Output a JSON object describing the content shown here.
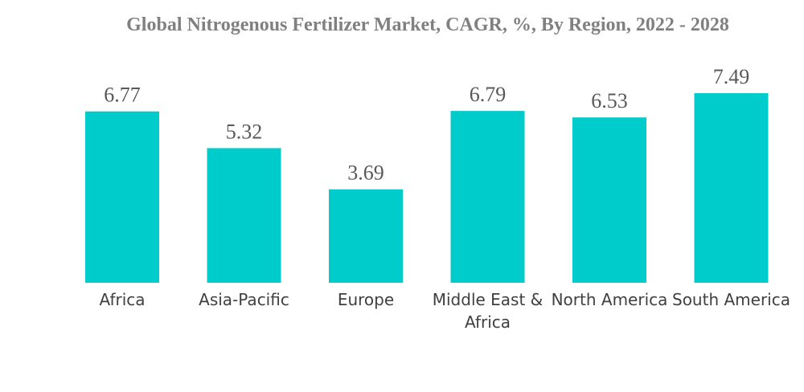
{
  "chart_data": {
    "type": "bar",
    "title": "Global Nitrogenous Fertilizer Market, CAGR, %, By Region, 2022 - 2028",
    "xlabel": "",
    "ylabel": "",
    "categories": [
      "Africa",
      "Asia-Pacific",
      "Europe",
      "Middle East & Africa",
      "North America",
      "South America"
    ],
    "values": [
      6.77,
      5.32,
      3.69,
      6.79,
      6.53,
      7.49
    ],
    "value_labels": [
      "6.77",
      "5.32",
      "3.69",
      "6.79",
      "6.53",
      "7.49"
    ],
    "ylim": [
      0,
      7.49
    ],
    "grid": false,
    "legend": "none"
  },
  "colors": {
    "bar": "#00CCCC",
    "title": "#808080",
    "value_label": "#595959",
    "category_label": "#404040"
  }
}
